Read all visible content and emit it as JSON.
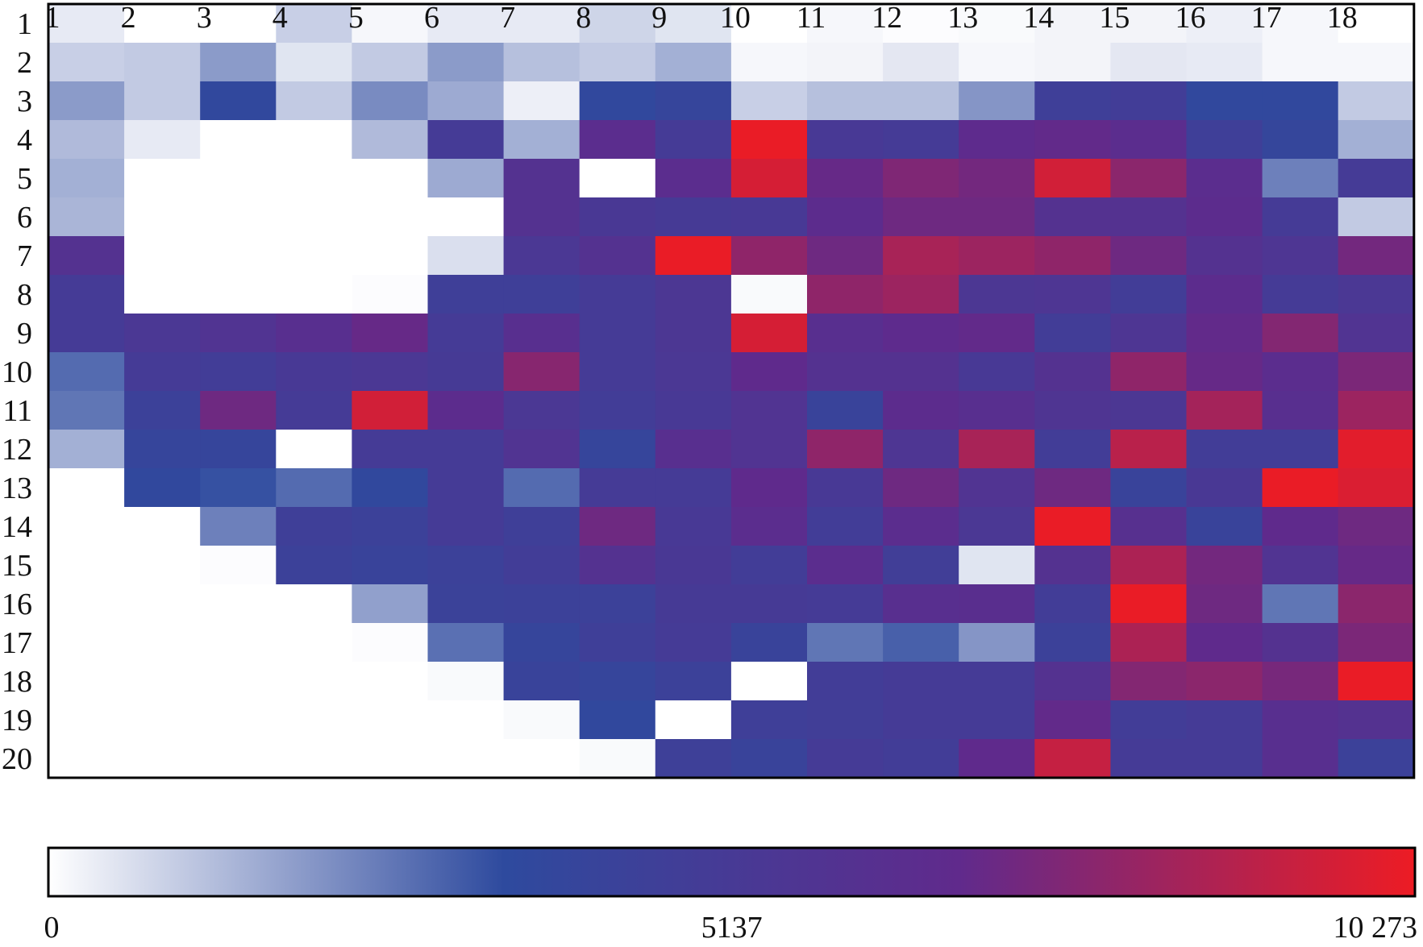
{
  "chart_data": {
    "type": "heatmap",
    "title": "",
    "xlabel": "",
    "ylabel": "",
    "x_categories": [
      "1",
      "2",
      "3",
      "4",
      "5",
      "6",
      "7",
      "8",
      "9",
      "10",
      "11",
      "12",
      "13",
      "14",
      "15",
      "16",
      "17",
      "18"
    ],
    "y_categories": [
      "1",
      "2",
      "3",
      "4",
      "5",
      "6",
      "7",
      "8",
      "9",
      "10",
      "11",
      "12",
      "13",
      "14",
      "15",
      "16",
      "17",
      "18",
      "19",
      "20"
    ],
    "values": [
      [
        400,
        0,
        0,
        900,
        150,
        400,
        400,
        800,
        500,
        0,
        150,
        50,
        100,
        200,
        200,
        300,
        150,
        0
      ],
      [
        900,
        1000,
        1900,
        500,
        1000,
        1900,
        1200,
        1000,
        1500,
        150,
        200,
        450,
        150,
        200,
        450,
        400,
        150,
        150
      ],
      [
        1900,
        1000,
        3600,
        1000,
        2200,
        1600,
        300,
        3600,
        4000,
        900,
        1200,
        1200,
        2000,
        4600,
        4800,
        3600,
        3600,
        1000
      ],
      [
        1300,
        400,
        0,
        0,
        1300,
        5000,
        1500,
        6500,
        5000,
        10200,
        5200,
        5000,
        6700,
        6900,
        6500,
        4600,
        3900,
        1500
      ],
      [
        1500,
        0,
        0,
        0,
        0,
        1600,
        6000,
        0,
        6500,
        9700,
        7000,
        7600,
        7300,
        9600,
        7900,
        6500,
        2400,
        5000
      ],
      [
        1400,
        0,
        0,
        0,
        0,
        0,
        6000,
        5300,
        5100,
        5200,
        6600,
        7200,
        7200,
        6000,
        6000,
        6600,
        5000,
        1000
      ],
      [
        6000,
        0,
        0,
        0,
        0,
        600,
        5400,
        6000,
        10200,
        8000,
        7200,
        8600,
        8300,
        8000,
        7200,
        6000,
        5600,
        7300
      ],
      [
        5000,
        0,
        0,
        0,
        50,
        4600,
        4600,
        5000,
        5500,
        100,
        8000,
        8300,
        5500,
        5600,
        4800,
        6600,
        5000,
        5400
      ],
      [
        5000,
        5400,
        5800,
        6300,
        7000,
        5000,
        6300,
        5000,
        5500,
        9700,
        6300,
        6700,
        6900,
        4800,
        5600,
        6900,
        7700,
        5800
      ],
      [
        2800,
        5000,
        4800,
        5200,
        5400,
        5100,
        7800,
        5000,
        5400,
        6800,
        6000,
        6000,
        5200,
        6000,
        8000,
        7000,
        6500,
        7500
      ],
      [
        2600,
        4400,
        7200,
        5000,
        9600,
        6600,
        5400,
        4800,
        5200,
        5800,
        4200,
        6600,
        6300,
        5700,
        5500,
        8500,
        6300,
        8300
      ],
      [
        1500,
        4000,
        4000,
        0,
        5000,
        5000,
        5800,
        4000,
        6300,
        5800,
        8000,
        5600,
        8600,
        4800,
        9000,
        4800,
        4800,
        10000
      ],
      [
        0,
        3600,
        3300,
        2800,
        3600,
        5000,
        2800,
        5000,
        5000,
        6800,
        5200,
        7200,
        5800,
        7200,
        4200,
        5300,
        10200,
        9800
      ],
      [
        0,
        0,
        2400,
        4600,
        4400,
        5000,
        4600,
        7200,
        5200,
        6500,
        4800,
        6500,
        5400,
        10200,
        6200,
        4200,
        6800,
        7200
      ],
      [
        0,
        0,
        50,
        4400,
        4200,
        4400,
        4800,
        6000,
        5300,
        4800,
        6500,
        4700,
        500,
        6000,
        8700,
        7300,
        5800,
        7000
      ],
      [
        0,
        0,
        0,
        0,
        1800,
        4300,
        4400,
        4400,
        5100,
        5100,
        5000,
        6300,
        6400,
        4800,
        10200,
        7200,
        2600,
        7900
      ],
      [
        0,
        0,
        0,
        0,
        50,
        2700,
        4000,
        4600,
        5000,
        4200,
        2600,
        3000,
        2000,
        4400,
        8700,
        6800,
        6000,
        7500
      ],
      [
        0,
        0,
        0,
        0,
        0,
        100,
        4200,
        4000,
        4400,
        0,
        4800,
        5000,
        5000,
        6000,
        7700,
        7900,
        7400,
        10200
      ],
      [
        0,
        0,
        0,
        0,
        0,
        0,
        100,
        3600,
        0,
        4600,
        4700,
        5000,
        5000,
        6900,
        4800,
        5000,
        6300,
        6000
      ],
      [
        0,
        0,
        0,
        0,
        0,
        0,
        0,
        100,
        4500,
        4200,
        5000,
        4800,
        6800,
        9300,
        5000,
        5000,
        6300,
        4400
      ]
    ],
    "colorbar": {
      "min": 0,
      "mid": 5137,
      "max": 10273,
      "tick_labels": [
        "0",
        "5137",
        "10 273"
      ],
      "colors": [
        "#ffffff",
        "#2e4a9e",
        "#602a8c",
        "#ed1c24"
      ]
    }
  }
}
